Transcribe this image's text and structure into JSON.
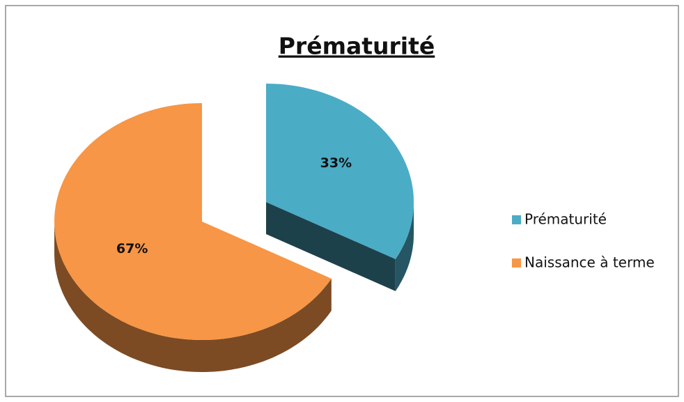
{
  "chart_data": {
    "type": "pie",
    "title": "Prématurité",
    "categories": [
      "Prématurité",
      "Naissance à terme"
    ],
    "values": [
      33,
      67
    ],
    "value_labels": [
      "33%",
      "67%"
    ],
    "colors": [
      "#4bacc6",
      "#f79646"
    ],
    "exploded": [
      true,
      false
    ],
    "legend": "right"
  }
}
